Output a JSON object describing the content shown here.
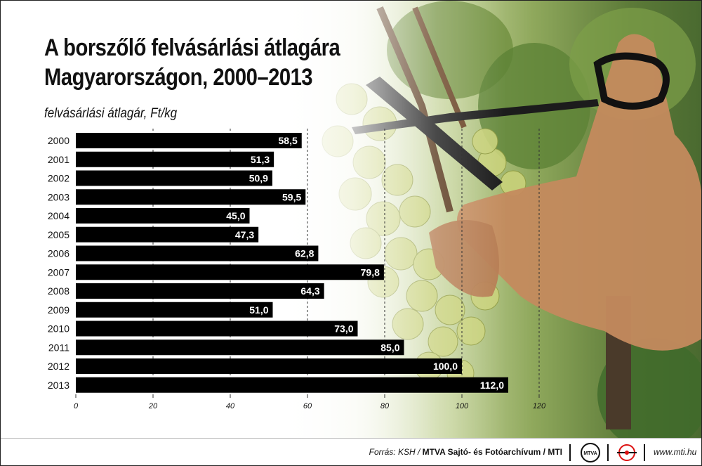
{
  "title_line1": "A borszőlő felvásárlási átlagára",
  "title_line2": "Magyarországon, 2000–2013",
  "footer": {
    "source_prefix": "Forrás: KSH / ",
    "source_org": "MTVA Sajtó- és Fotóarchívum / MTI",
    "mtva_logo_text": "MTVA",
    "site": "www.mti.hu"
  },
  "colors": {
    "bar": "#000000",
    "bar_label": "#ffffff",
    "gridline": "#333333",
    "text": "#111111"
  },
  "chart_data": {
    "type": "bar",
    "orientation": "horizontal",
    "ylabel": "felvásárlási átlagár, Ft/kg",
    "categories": [
      "2000",
      "2001",
      "2002",
      "2003",
      "2004",
      "2005",
      "2006",
      "2007",
      "2008",
      "2009",
      "2010",
      "2011",
      "2012",
      "2013"
    ],
    "values": [
      58.5,
      51.3,
      50.9,
      59.5,
      45.0,
      47.3,
      62.8,
      79.8,
      64.3,
      51.0,
      73.0,
      85.0,
      100.0,
      112.0
    ],
    "value_labels": [
      "58,5",
      "51,3",
      "50,9",
      "59,5",
      "45,0",
      "47,3",
      "62,8",
      "79,8",
      "64,3",
      "51,0",
      "73,0",
      "85,0",
      "100,0",
      "112,0"
    ],
    "xticks": [
      0,
      20,
      40,
      60,
      80,
      100,
      120
    ],
    "xlim": [
      0,
      120
    ],
    "grid": true
  }
}
